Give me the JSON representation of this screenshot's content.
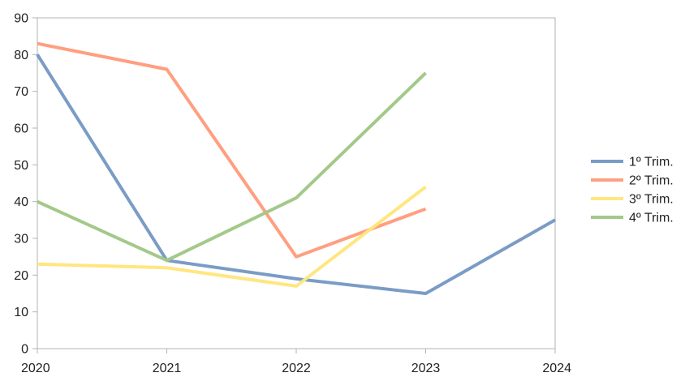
{
  "chart_data": {
    "type": "line",
    "title": "",
    "xlabel": "",
    "ylabel": "",
    "x": [
      "2020",
      "2021",
      "2022",
      "2023",
      "2024"
    ],
    "xlim": [
      2020,
      2024
    ],
    "ylim": [
      0,
      90
    ],
    "yticks": [
      0,
      10,
      20,
      30,
      40,
      50,
      60,
      70,
      80,
      90
    ],
    "grid": false,
    "legend_position": "right",
    "series": [
      {
        "name": "1º Trim.",
        "color": "#7a9cc6",
        "values": [
          80,
          24,
          19,
          15,
          35
        ]
      },
      {
        "name": "2º Trim.",
        "color": "#ff9f80",
        "values": [
          83,
          76,
          25,
          38,
          null
        ]
      },
      {
        "name": "3º Trim.",
        "color": "#ffe680",
        "values": [
          23,
          22,
          17,
          44,
          null
        ]
      },
      {
        "name": "4º Trim.",
        "color": "#a3c98a",
        "values": [
          40,
          24,
          41,
          75,
          null
        ]
      }
    ]
  }
}
